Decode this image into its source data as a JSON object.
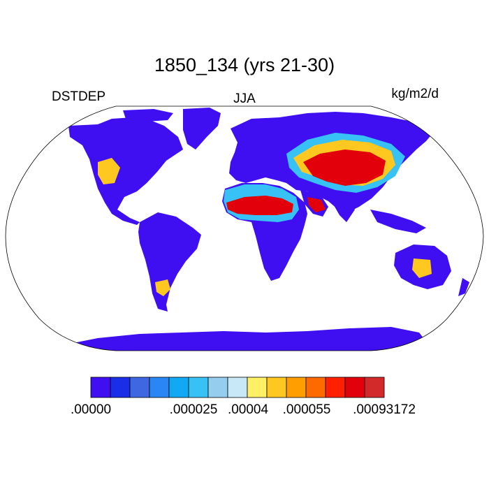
{
  "title": "1850_134 (yrs 21-30)",
  "left_label": "DSTDEP",
  "center_label": "JJA",
  "right_label": "kg/m2/d",
  "colorbar": {
    "colors": [
      "#3f0ff2",
      "#1a2ee8",
      "#3e67e1",
      "#2a86f2",
      "#11a9f4",
      "#37c1f4",
      "#95cdee",
      "#c8e8f8",
      "#fff066",
      "#ffc820",
      "#ff9e00",
      "#ff6a00",
      "#ff2000",
      "#e2000a",
      "#d22a2a"
    ],
    "tick_labels": [
      ".00000",
      ".000025",
      ".00004",
      ".000055",
      ".00093172"
    ]
  },
  "map_colors": {
    "land_low": "#3f0ff2",
    "ocean": "#ffffff",
    "outline": "#000000"
  }
}
